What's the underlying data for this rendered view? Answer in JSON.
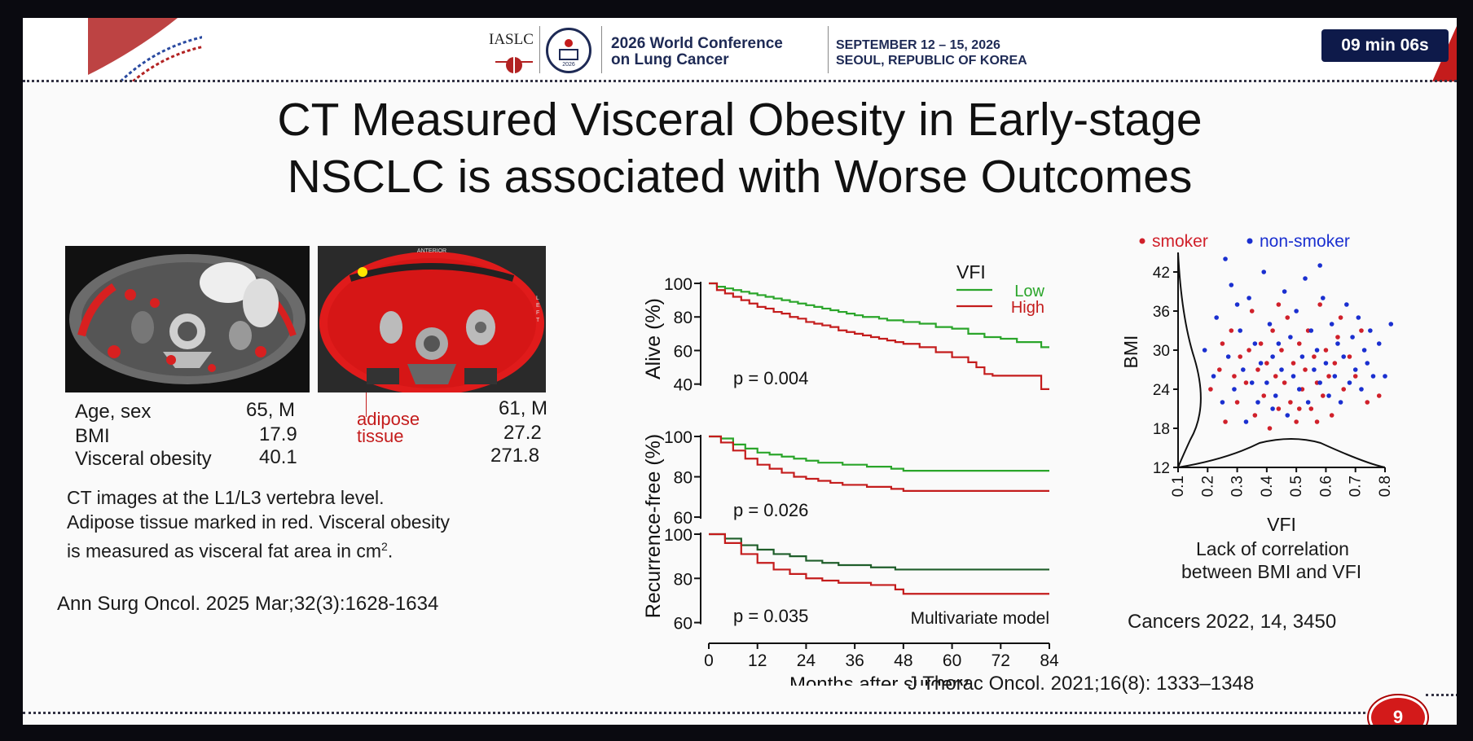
{
  "header": {
    "org": "IASLC",
    "conf_line1": "2026 World Conference",
    "conf_line2": "on Lung Cancer",
    "date_line1": "SEPTEMBER 12 – 15, 2026",
    "date_line2": "SEOUL, REPUBLIC OF KOREA",
    "timer": "09 min 06s"
  },
  "slide": {
    "title_line1": "CT Measured Visceral Obesity in Early-stage",
    "title_line2": "NSCLC is associated with Worse Outcomes",
    "page_number": "9",
    "left_citation": "Ann Surg Oncol. 2025 Mar;32(3):1628-1634",
    "center_citation": "J Thorac Oncol. 2021;16(8): 1333–1348",
    "right_citation": "Cancers 2022, 14, 3450",
    "right_caption_line1": "Lack of correlation",
    "right_caption_line2": "between BMI and VFI",
    "ct_caption_line1": "CT images at the L1/L3 vertebra level.",
    "ct_caption_line2": "Adipose tissue marked in red. Visceral obesity",
    "ct_caption_line3": "is measured as visceral fat area in cm",
    "ct_caption_sup": "2",
    "ct_caption_end": ".",
    "ct_image_label_anterior": "ANTERIOR",
    "ct_image_label_left": "LEFT",
    "adipose_label_line1": "adipose",
    "adipose_label_line2": "tissue",
    "patient_labels": {
      "age_sex": "Age, sex",
      "bmi": "BMI",
      "visceral": "Visceral obesity"
    },
    "patient1": {
      "age_sex": "65, M",
      "bmi": "17.9",
      "visceral": "40.1"
    },
    "patient2": {
      "age_sex": "61, M",
      "bmi": "27.2",
      "visceral": "271.8"
    }
  },
  "colors": {
    "accent_red": "#c41c1c",
    "low_green": "#2aa52a",
    "high_red": "#c41c1c",
    "dark_green": "#1f5e2a",
    "smoker_red": "#d0202a",
    "nonsmoker_blue": "#1a2fd0",
    "banner_navy": "#1e2a55"
  },
  "chart_data": [
    {
      "type": "line",
      "name": "km_alive",
      "ylabel": "Alive (%)",
      "ylim": [
        35,
        100
      ],
      "yticks": [
        40,
        60,
        80,
        100
      ],
      "xlim": [
        0,
        84
      ],
      "p_value": "p = 0.004",
      "legend_title": "VFI",
      "series": [
        {
          "name": "Low",
          "color": "#2aa52a",
          "x": [
            0,
            2,
            4,
            6,
            8,
            10,
            12,
            14,
            16,
            18,
            20,
            22,
            24,
            26,
            28,
            30,
            32,
            34,
            36,
            38,
            40,
            42,
            44,
            46,
            48,
            52,
            56,
            60,
            64,
            68,
            72,
            76,
            80,
            82,
            84
          ],
          "y": [
            100,
            98,
            97,
            96,
            95,
            94,
            93,
            92,
            91,
            90,
            89,
            88,
            87,
            86,
            85,
            84,
            83,
            82,
            81,
            80,
            80,
            79,
            78,
            78,
            77,
            76,
            74,
            73,
            70,
            68,
            67,
            65,
            65,
            62,
            62
          ]
        },
        {
          "name": "High",
          "color": "#c41c1c",
          "x": [
            0,
            2,
            4,
            6,
            8,
            10,
            12,
            14,
            16,
            18,
            20,
            22,
            24,
            26,
            28,
            30,
            32,
            34,
            36,
            38,
            40,
            42,
            44,
            46,
            48,
            52,
            56,
            60,
            64,
            66,
            68,
            70,
            72,
            76,
            80,
            82,
            84
          ],
          "y": [
            100,
            96,
            94,
            92,
            90,
            88,
            86,
            85,
            83,
            82,
            80,
            79,
            77,
            76,
            75,
            74,
            72,
            71,
            70,
            69,
            68,
            67,
            66,
            65,
            64,
            62,
            59,
            56,
            53,
            50,
            46,
            45,
            45,
            45,
            45,
            37,
            37
          ]
        }
      ]
    },
    {
      "type": "line",
      "name": "km_recurrence_univariate",
      "ylabel": "Recurrence-free (%)",
      "ylim": [
        58,
        100
      ],
      "yticks": [
        60,
        80,
        100
      ],
      "xlim": [
        0,
        84
      ],
      "p_value": "p = 0.026",
      "series": [
        {
          "name": "Low",
          "color": "#2aa52a",
          "x": [
            0,
            3,
            6,
            9,
            12,
            15,
            18,
            21,
            24,
            27,
            30,
            33,
            36,
            39,
            42,
            45,
            48,
            54,
            60,
            66,
            72,
            78,
            84
          ],
          "y": [
            100,
            99,
            96,
            94,
            92,
            91,
            90,
            89,
            88,
            87,
            87,
            86,
            86,
            85,
            85,
            84,
            83,
            83,
            83,
            83,
            83,
            83,
            83
          ]
        },
        {
          "name": "High",
          "color": "#c41c1c",
          "x": [
            0,
            3,
            6,
            9,
            12,
            15,
            18,
            21,
            24,
            27,
            30,
            33,
            36,
            39,
            42,
            45,
            48,
            54,
            60,
            66,
            72,
            78,
            84
          ],
          "y": [
            100,
            97,
            93,
            89,
            86,
            84,
            82,
            80,
            79,
            78,
            77,
            76,
            76,
            75,
            75,
            74,
            73,
            73,
            73,
            73,
            73,
            73,
            73
          ]
        }
      ]
    },
    {
      "type": "line",
      "name": "km_recurrence_multivariate",
      "ylim": [
        58,
        100
      ],
      "yticks": [
        60,
        80,
        100
      ],
      "xlim": [
        0,
        84
      ],
      "xticks": [
        0,
        12,
        24,
        36,
        48,
        60,
        72,
        84
      ],
      "xlabel": "Months after surgery",
      "p_value": "p = 0.035",
      "annotation": "Multivariate model",
      "series": [
        {
          "name": "Low",
          "color": "#1f5e2a",
          "x": [
            0,
            4,
            8,
            12,
            16,
            20,
            24,
            28,
            32,
            36,
            40,
            44,
            46,
            48,
            60,
            72,
            84
          ],
          "y": [
            100,
            98,
            95,
            93,
            91,
            90,
            88,
            87,
            86,
            86,
            85,
            85,
            84,
            84,
            84,
            84,
            84
          ]
        },
        {
          "name": "High",
          "color": "#c41c1c",
          "x": [
            0,
            4,
            8,
            12,
            16,
            20,
            24,
            28,
            32,
            36,
            40,
            44,
            46,
            48,
            60,
            72,
            84
          ],
          "y": [
            100,
            96,
            91,
            87,
            84,
            82,
            80,
            79,
            78,
            78,
            77,
            77,
            75,
            73,
            73,
            73,
            73
          ]
        }
      ]
    },
    {
      "type": "scatter",
      "name": "bmi_vs_vfi",
      "xlabel": "VFI",
      "ylabel": "BMI",
      "xlim": [
        0.1,
        0.8
      ],
      "ylim": [
        12,
        45
      ],
      "xticks": [
        0.1,
        0.2,
        0.3,
        0.4,
        0.5,
        0.6,
        0.7,
        0.8
      ],
      "yticks": [
        12,
        18,
        24,
        30,
        36,
        42
      ],
      "legend": [
        {
          "name": "smoker",
          "color": "#d0202a"
        },
        {
          "name": "non-smoker",
          "color": "#1a2fd0"
        }
      ],
      "series": [
        {
          "name": "smoker",
          "color": "#d0202a",
          "points": [
            [
              0.21,
              24
            ],
            [
              0.24,
              27
            ],
            [
              0.26,
              19
            ],
            [
              0.28,
              33
            ],
            [
              0.3,
              22
            ],
            [
              0.31,
              29
            ],
            [
              0.33,
              25
            ],
            [
              0.35,
              36
            ],
            [
              0.36,
              20
            ],
            [
              0.37,
              27
            ],
            [
              0.38,
              31
            ],
            [
              0.39,
              23
            ],
            [
              0.4,
              28
            ],
            [
              0.41,
              18
            ],
            [
              0.42,
              33
            ],
            [
              0.43,
              26
            ],
            [
              0.44,
              21
            ],
            [
              0.45,
              30
            ],
            [
              0.46,
              25
            ],
            [
              0.47,
              35
            ],
            [
              0.48,
              22
            ],
            [
              0.49,
              28
            ],
            [
              0.5,
              19
            ],
            [
              0.51,
              31
            ],
            [
              0.52,
              24
            ],
            [
              0.53,
              27
            ],
            [
              0.54,
              33
            ],
            [
              0.55,
              21
            ],
            [
              0.56,
              29
            ],
            [
              0.57,
              25
            ],
            [
              0.58,
              37
            ],
            [
              0.59,
              23
            ],
            [
              0.6,
              30
            ],
            [
              0.61,
              26
            ],
            [
              0.62,
              20
            ],
            [
              0.63,
              28
            ],
            [
              0.64,
              32
            ],
            [
              0.66,
              24
            ],
            [
              0.68,
              29
            ],
            [
              0.7,
              26
            ],
            [
              0.72,
              33
            ],
            [
              0.74,
              22
            ],
            [
              0.78,
              23
            ],
            [
              0.25,
              31
            ],
            [
              0.29,
              26
            ],
            [
              0.34,
              30
            ],
            [
              0.44,
              37
            ],
            [
              0.51,
              21
            ],
            [
              0.57,
              19
            ],
            [
              0.65,
              35
            ]
          ]
        },
        {
          "name": "non-smoker",
          "color": "#1a2fd0",
          "points": [
            [
              0.19,
              30
            ],
            [
              0.22,
              26
            ],
            [
              0.23,
              35
            ],
            [
              0.25,
              22
            ],
            [
              0.27,
              29
            ],
            [
              0.28,
              40
            ],
            [
              0.29,
              24
            ],
            [
              0.31,
              33
            ],
            [
              0.32,
              27
            ],
            [
              0.33,
              19
            ],
            [
              0.34,
              38
            ],
            [
              0.35,
              25
            ],
            [
              0.36,
              31
            ],
            [
              0.37,
              22
            ],
            [
              0.38,
              28
            ],
            [
              0.39,
              42
            ],
            [
              0.4,
              25
            ],
            [
              0.41,
              34
            ],
            [
              0.42,
              29
            ],
            [
              0.43,
              23
            ],
            [
              0.44,
              31
            ],
            [
              0.45,
              27
            ],
            [
              0.46,
              39
            ],
            [
              0.47,
              20
            ],
            [
              0.48,
              32
            ],
            [
              0.49,
              26
            ],
            [
              0.5,
              36
            ],
            [
              0.51,
              24
            ],
            [
              0.52,
              29
            ],
            [
              0.53,
              41
            ],
            [
              0.54,
              22
            ],
            [
              0.55,
              33
            ],
            [
              0.56,
              27
            ],
            [
              0.57,
              30
            ],
            [
              0.58,
              25
            ],
            [
              0.59,
              38
            ],
            [
              0.6,
              28
            ],
            [
              0.61,
              23
            ],
            [
              0.62,
              34
            ],
            [
              0.63,
              26
            ],
            [
              0.64,
              31
            ],
            [
              0.65,
              22
            ],
            [
              0.66,
              29
            ],
            [
              0.67,
              37
            ],
            [
              0.68,
              25
            ],
            [
              0.69,
              32
            ],
            [
              0.7,
              27
            ],
            [
              0.71,
              35
            ],
            [
              0.72,
              24
            ],
            [
              0.73,
              30
            ],
            [
              0.74,
              28
            ],
            [
              0.75,
              33
            ],
            [
              0.76,
              26
            ],
            [
              0.78,
              31
            ],
            [
              0.8,
              26
            ],
            [
              0.82,
              34
            ],
            [
              0.26,
              44
            ],
            [
              0.3,
              37
            ],
            [
              0.42,
              21
            ],
            [
              0.58,
              43
            ]
          ]
        }
      ]
    }
  ]
}
